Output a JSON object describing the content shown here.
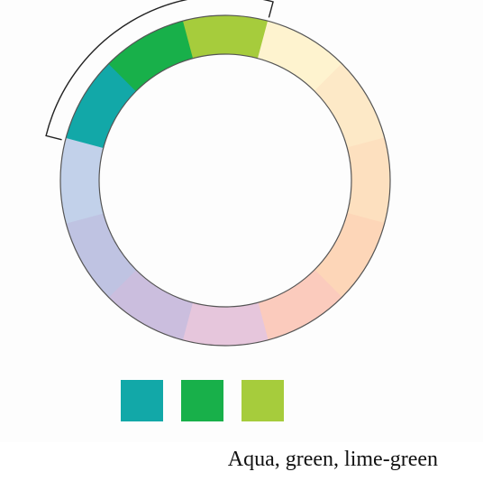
{
  "color_wheel": {
    "segments": [
      {
        "name": "lime-green",
        "color": "#a6cc3c",
        "highlighted": true
      },
      {
        "name": "pale-yellow",
        "color": "#fef3cf",
        "highlighted": false
      },
      {
        "name": "pale-peach-1",
        "color": "#fde9c7",
        "highlighted": false
      },
      {
        "name": "pale-peach-2",
        "color": "#fde0bf",
        "highlighted": false
      },
      {
        "name": "pale-apricot",
        "color": "#fdd6b8",
        "highlighted": false
      },
      {
        "name": "pale-salmon",
        "color": "#fbcbbd",
        "highlighted": false
      },
      {
        "name": "pale-pink",
        "color": "#e6c6dc",
        "highlighted": false
      },
      {
        "name": "pale-lavender",
        "color": "#cbbede",
        "highlighted": false
      },
      {
        "name": "pale-periwinkle",
        "color": "#bfc3e2",
        "highlighted": false
      },
      {
        "name": "pale-blue",
        "color": "#c2d1ea",
        "highlighted": false
      },
      {
        "name": "aqua",
        "color": "#12a8a8",
        "highlighted": true
      },
      {
        "name": "green",
        "color": "#18b04a",
        "highlighted": true
      }
    ],
    "outline_color": "#555555"
  },
  "swatches": [
    {
      "name": "aqua",
      "color": "#12a8a8"
    },
    {
      "name": "green",
      "color": "#18b04a"
    },
    {
      "name": "lime-green",
      "color": "#a6cc3c"
    }
  ],
  "caption": "Aqua, green, lime-green"
}
